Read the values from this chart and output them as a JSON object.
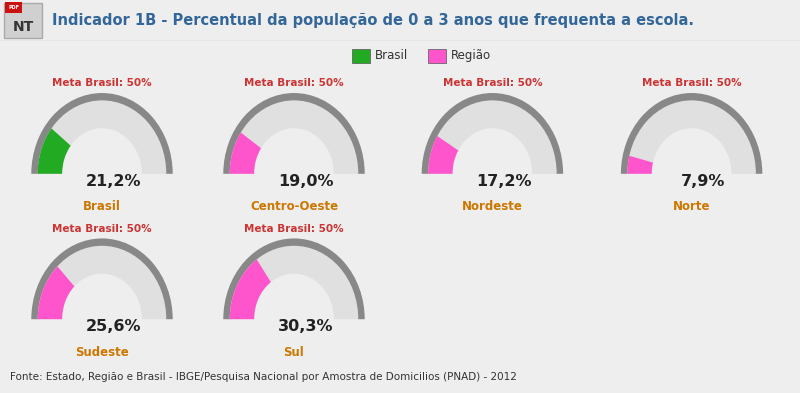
{
  "title": "Indicador 1B - Percentual da população de 0 a 3 anos que frequenta a escola.",
  "legend_items": [
    {
      "label": "Brasil",
      "color": "#22aa22"
    },
    {
      "label": "Região",
      "color": "#ff55cc"
    }
  ],
  "gauges": [
    {
      "label": "Brasil",
      "value": 21.2,
      "color": "#22aa22",
      "row": 0,
      "col": 0
    },
    {
      "label": "Centro-Oeste",
      "value": 19.0,
      "color": "#ff55cc",
      "row": 0,
      "col": 1
    },
    {
      "label": "Nordeste",
      "value": 17.2,
      "color": "#ff55cc",
      "row": 0,
      "col": 2
    },
    {
      "label": "Norte",
      "value": 7.9,
      "color": "#ff55cc",
      "row": 0,
      "col": 3
    },
    {
      "label": "Sudeste",
      "value": 25.6,
      "color": "#ff55cc",
      "row": 1,
      "col": 0
    },
    {
      "label": "Sul",
      "value": 30.3,
      "color": "#ff55cc",
      "row": 1,
      "col": 1
    }
  ],
  "meta": 50.0,
  "meta_label": "Meta Brasil: 50%",
  "bg_color": "#eeeeee",
  "gauge_track_color": "#e0e0e0",
  "dark_arc_color": "#888888",
  "source_text": "Fonte: Estado, Região e Brasil - IBGE/Pesquisa Nacional por Amostra de Domicilios (PNAD) - 2012",
  "title_color": "#336699",
  "meta_color": "#cc3333",
  "label_color": "#cc7700",
  "value_color": "#222222"
}
